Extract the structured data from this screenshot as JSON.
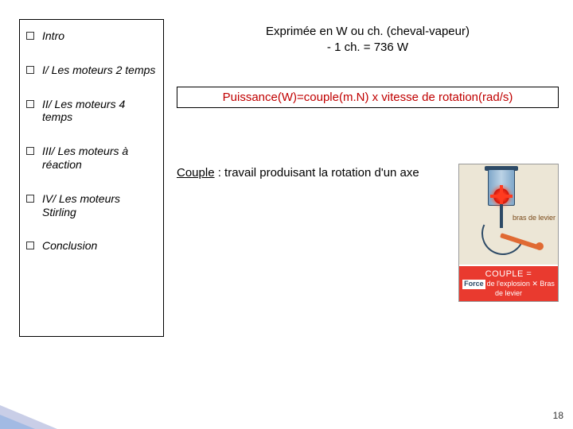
{
  "sidebar": {
    "items": [
      {
        "label": "Intro"
      },
      {
        "label": "I/ Les moteurs 2 temps"
      },
      {
        "label": "II/ Les moteurs 4 temps"
      },
      {
        "label": "III/ Les moteurs à réaction"
      },
      {
        "label": "IV/ Les moteurs Stirling"
      },
      {
        "label": "Conclusion"
      }
    ]
  },
  "header": {
    "line1": "Exprimée en W ou ch. (cheval-vapeur)",
    "line2": "- 1 ch. = 736 W"
  },
  "formula": "Puissance(W)=couple(m.N) x vitesse de rotation(rad/s)",
  "couple": {
    "term": "Couple",
    "definition": " : travail produisant la rotation d'un axe"
  },
  "diagram": {
    "bras_label": "bras de levier",
    "band_line1": "COUPLE =",
    "band_line2_force": "Force",
    "band_line2_rest": "de l'explosion  ✕  Bras de levier"
  },
  "page_number": "18",
  "colors": {
    "formula_text": "#c00000",
    "band_bg": "#e93a2f"
  }
}
